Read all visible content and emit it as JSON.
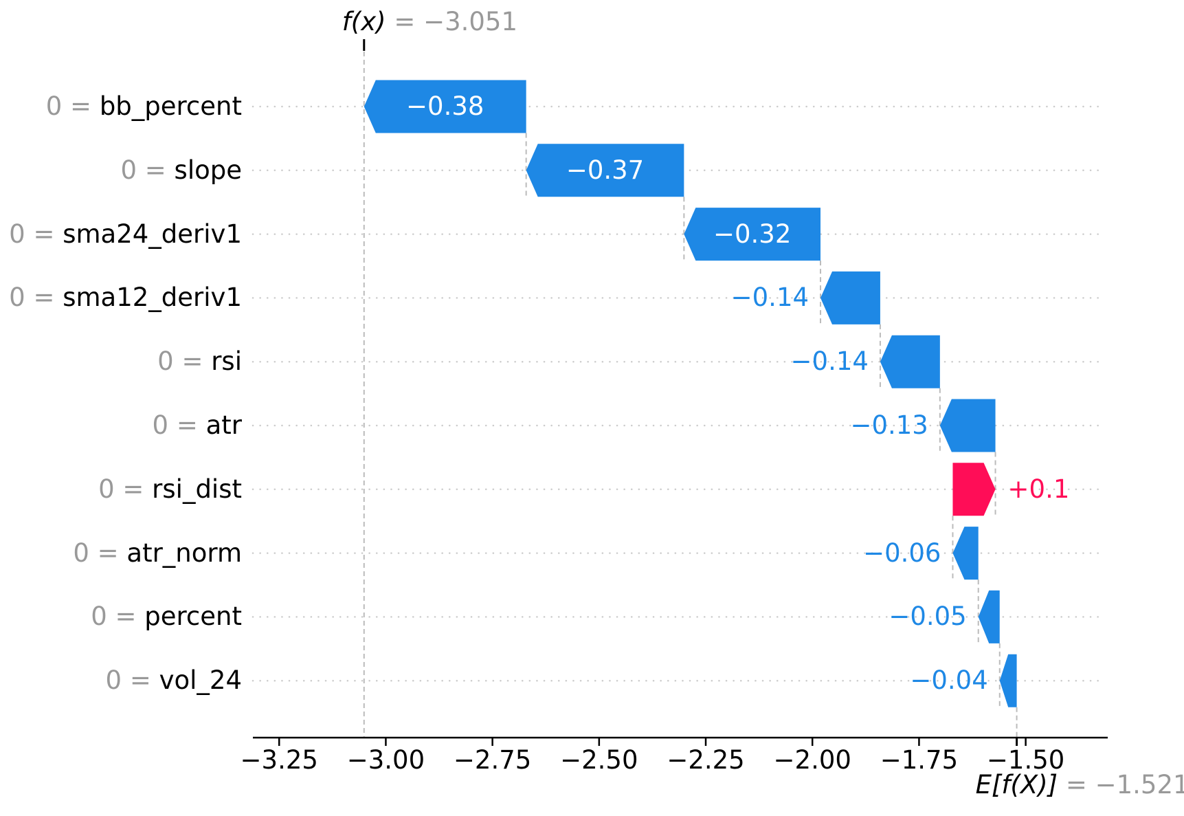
{
  "chart_data": {
    "type": "waterfall",
    "title": {
      "fx_label": "f(x)",
      "fx_value": -3.051,
      "fx_value_label": " = −3.051"
    },
    "base": {
      "label": "E[f(X)]",
      "value": -1.521,
      "value_label": " = −1.521"
    },
    "feature_value_separator": " = ",
    "features": [
      {
        "value": "0",
        "name": "bb_percent",
        "shap": -0.38,
        "label": "−0.38",
        "label_position": "inside"
      },
      {
        "value": "0",
        "name": "slope",
        "shap": -0.37,
        "label": "−0.37",
        "label_position": "inside"
      },
      {
        "value": "0",
        "name": "sma24_deriv1",
        "shap": -0.32,
        "label": "−0.32",
        "label_position": "inside"
      },
      {
        "value": "0",
        "name": "sma12_deriv1",
        "shap": -0.14,
        "label": "−0.14",
        "label_position": "left"
      },
      {
        "value": "0",
        "name": "rsi",
        "shap": -0.14,
        "label": "−0.14",
        "label_position": "left"
      },
      {
        "value": "0",
        "name": "atr",
        "shap": -0.13,
        "label": "−0.13",
        "label_position": "left"
      },
      {
        "value": "0",
        "name": "rsi_dist",
        "shap": 0.1,
        "label": "+0.1",
        "label_position": "right"
      },
      {
        "value": "0",
        "name": "atr_norm",
        "shap": -0.06,
        "label": "−0.06",
        "label_position": "left"
      },
      {
        "value": "0",
        "name": "percent",
        "shap": -0.05,
        "label": "−0.05",
        "label_position": "left"
      },
      {
        "value": "0",
        "name": "vol_24",
        "shap": -0.04,
        "label": "−0.04",
        "label_position": "left"
      }
    ],
    "x_axis": {
      "tick_values": [
        -3.25,
        -3.0,
        -2.75,
        -2.5,
        -2.25,
        -2.0,
        -1.75,
        -1.5
      ],
      "tick_labels": [
        "−3.25",
        "−3.00",
        "−2.75",
        "−2.50",
        "−2.25",
        "−2.00",
        "−1.75",
        "−1.50"
      ],
      "xlim": [
        -3.3116,
        -1.3077
      ]
    },
    "colors": {
      "negative": "#1E88E5",
      "positive": "#FF0D57",
      "gray_text": "#999999",
      "connector": "#bbbbbb",
      "guide": "#cccccc",
      "axis": "#000000",
      "background": "#ffffff"
    }
  }
}
